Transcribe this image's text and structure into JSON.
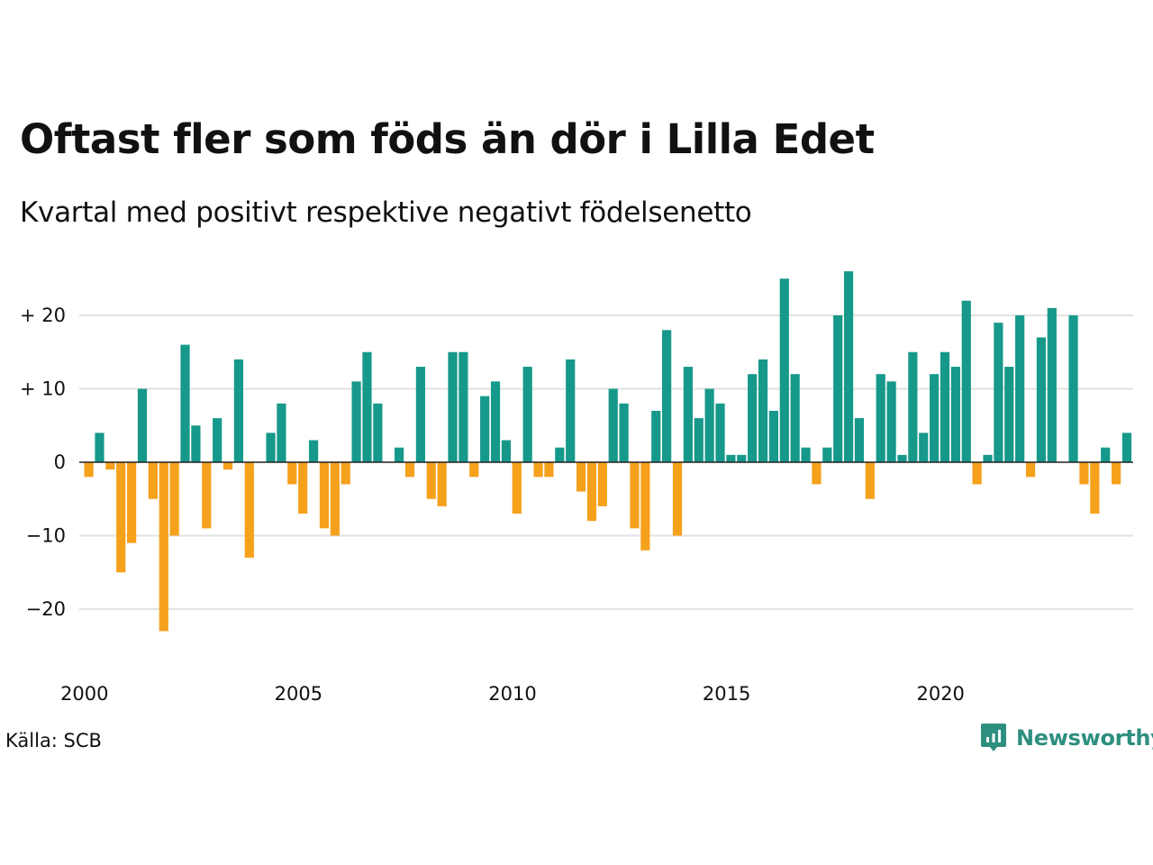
{
  "title": "Oftast fler som föds än dör i Lilla Edet",
  "subtitle": "Kvartal med positivt respektive negativt födelsenetto",
  "source": "Källa: SCB",
  "brand": {
    "name": "Newsworthy",
    "icon": "newsworthy-logo-icon",
    "color": "#2e8f7f"
  },
  "chart_data": {
    "type": "bar",
    "x_start": "2000 Q1",
    "x_step": "quarter",
    "x_ticks": [
      "2000",
      "2005",
      "2010",
      "2015",
      "2020"
    ],
    "y_ticks": [
      "+ 20",
      "+ 10",
      "0",
      "−10",
      "−20"
    ],
    "y_tick_values": [
      20,
      10,
      0,
      -10,
      -20
    ],
    "ylim": [
      -25,
      27
    ],
    "grid": true,
    "colors": {
      "positive": "#16998a",
      "negative": "#f5a11c",
      "grid": "#e2e2e2",
      "zero_line": "#222222"
    },
    "values": [
      -2,
      4,
      -1,
      -15,
      -11,
      10,
      -5,
      -23,
      -10,
      16,
      5,
      -9,
      6,
      -1,
      14,
      -13,
      0,
      4,
      8,
      -3,
      -7,
      3,
      -9,
      -10,
      -3,
      11,
      15,
      8,
      0,
      2,
      -2,
      13,
      -5,
      -6,
      15,
      15,
      -2,
      9,
      11,
      3,
      -7,
      13,
      -2,
      -2,
      2,
      14,
      -4,
      -8,
      -6,
      10,
      8,
      -9,
      -12,
      7,
      18,
      -10,
      13,
      6,
      10,
      8,
      1,
      1,
      12,
      14,
      7,
      25,
      12,
      2,
      -3,
      2,
      20,
      26,
      6,
      -5,
      12,
      11,
      1,
      15,
      4,
      12,
      15,
      13,
      22,
      -3,
      1,
      19,
      13,
      20,
      -2,
      17,
      21,
      0,
      20,
      -3,
      -7,
      2,
      -3,
      4
    ]
  }
}
